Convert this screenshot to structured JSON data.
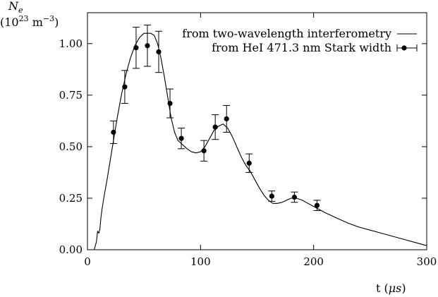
{
  "chart_data": {
    "type": "line",
    "title": "",
    "ylabel_symbol": "N",
    "ylabel_subscript": "e",
    "ylabel_unit_base": "(10",
    "ylabel_unit_exp": "23",
    "ylabel_unit_mid": " m",
    "ylabel_unit_exp2": "−3",
    "ylabel_unit_end": ")",
    "xlabel_prefix": "t (",
    "xlabel_mu": "μ",
    "xlabel_unit": "s",
    "xlabel_suffix": ")",
    "xlim": [
      0,
      300
    ],
    "ylim": [
      0,
      1.15
    ],
    "xticks": [
      0,
      100,
      200,
      300
    ],
    "xtick_labels": [
      "0",
      "100",
      "200",
      "300"
    ],
    "yticks": [
      0,
      0.25,
      0.5,
      0.75,
      1.0
    ],
    "ytick_labels": [
      "0.00",
      "0.25",
      "0.50",
      "0.75",
      "1.00"
    ],
    "grid": false,
    "legend_position": "top-right",
    "series": [
      {
        "name": "from two-wavelength interferometry",
        "kind": "line",
        "x": [
          6,
          8,
          9,
          10,
          11,
          12,
          13,
          15,
          17,
          20,
          23,
          26,
          30,
          34,
          38,
          42,
          46,
          50,
          53,
          56,
          59,
          62,
          65,
          68,
          71,
          74,
          77,
          80,
          84,
          88,
          92,
          96,
          100,
          104,
          108,
          112,
          116,
          120,
          124,
          128,
          132,
          136,
          140,
          144,
          148,
          152,
          156,
          160,
          164,
          168,
          172,
          176,
          180,
          185,
          190,
          195,
          200,
          205,
          210,
          220,
          230,
          240,
          250,
          260,
          270,
          280,
          290,
          300
        ],
        "y": [
          0.0,
          0.04,
          0.09,
          0.08,
          0.1,
          0.16,
          0.2,
          0.27,
          0.33,
          0.43,
          0.53,
          0.63,
          0.75,
          0.85,
          0.93,
          0.99,
          1.03,
          1.05,
          1.05,
          1.05,
          1.04,
          1.0,
          0.93,
          0.84,
          0.74,
          0.64,
          0.57,
          0.53,
          0.51,
          0.49,
          0.475,
          0.47,
          0.475,
          0.5,
          0.54,
          0.58,
          0.6,
          0.61,
          0.59,
          0.55,
          0.5,
          0.45,
          0.41,
          0.38,
          0.34,
          0.3,
          0.265,
          0.24,
          0.225,
          0.225,
          0.23,
          0.24,
          0.25,
          0.25,
          0.24,
          0.225,
          0.21,
          0.195,
          0.18,
          0.155,
          0.13,
          0.11,
          0.095,
          0.08,
          0.065,
          0.05,
          0.035,
          0.02
        ]
      },
      {
        "name": "from HeI 471.3 nm Stark width",
        "kind": "points-with-errorbars",
        "x": [
          23,
          33,
          43,
          53,
          63,
          73,
          83,
          103,
          113,
          123,
          143,
          163,
          183,
          203
        ],
        "y": [
          0.57,
          0.79,
          0.98,
          0.99,
          0.96,
          0.71,
          0.54,
          0.48,
          0.595,
          0.635,
          0.42,
          0.26,
          0.255,
          0.215
        ],
        "err": [
          0.055,
          0.08,
          0.1,
          0.1,
          0.1,
          0.07,
          0.05,
          0.05,
          0.06,
          0.065,
          0.045,
          0.025,
          0.025,
          0.025
        ]
      }
    ]
  }
}
